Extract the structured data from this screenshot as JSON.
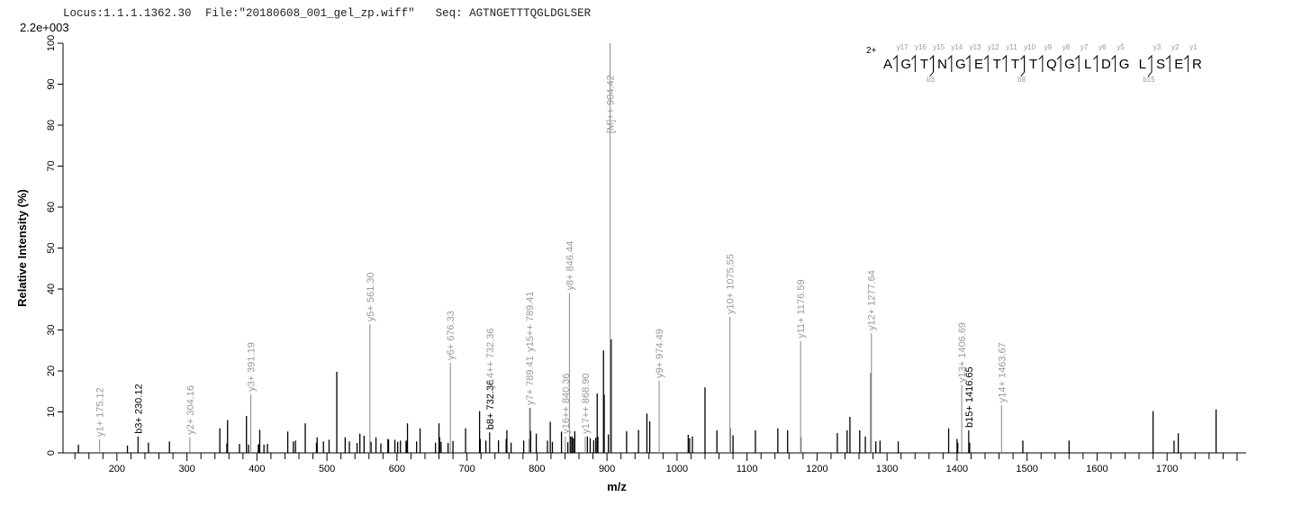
{
  "header": {
    "locus": "Locus:1.1.1.1362.30",
    "file": "File:\"20180608_001_gel_zp.wiff\"",
    "seq": "Seq: AGTNGETTTQGLDGLSER",
    "scale": "2.2e+003"
  },
  "colors": {
    "peak": "#000000",
    "y_ion": "#999999",
    "b_ion": "#000000",
    "axis": "#000000"
  },
  "chart_data": {
    "type": "bar",
    "title": "",
    "xlabel": "m/z",
    "ylabel": "Relative   Intensity (%)",
    "xlim": [
      123,
      1813
    ],
    "ylim": [
      0,
      100
    ],
    "xticks": [
      200,
      300,
      400,
      500,
      600,
      700,
      800,
      900,
      1000,
      1100,
      1200,
      1300,
      1400,
      1500,
      1600,
      1700
    ],
    "yticks": [
      0,
      10,
      20,
      30,
      40,
      50,
      60,
      70,
      80,
      90,
      100
    ],
    "grid": false,
    "annotated_peaks": [
      {
        "mz": 175.12,
        "intensity": 3.3,
        "label": "y1+ 175.12",
        "ion": "y"
      },
      {
        "mz": 230.12,
        "intensity": 4,
        "label": "b3+ 230.12",
        "ion": "b"
      },
      {
        "mz": 304.16,
        "intensity": 3.8,
        "label": "y2+ 304.16",
        "ion": "y"
      },
      {
        "mz": 391.19,
        "intensity": 14.3,
        "label": "y3+ 391.19",
        "ion": "y"
      },
      {
        "mz": 561.3,
        "intensity": 31.4,
        "label": "y5+ 561.30",
        "ion": "y"
      },
      {
        "mz": 676.33,
        "intensity": 22,
        "label": "y6+ 676.33",
        "ion": "y"
      },
      {
        "mz": 732.36,
        "intensity": 5,
        "label": "b8+ 732.36",
        "ion": "b"
      },
      {
        "mz": 732.36,
        "intensity": 15,
        "label": "y14++ 732.36",
        "ion": "y",
        "label_only": true
      },
      {
        "mz": 789.41,
        "intensity": 11,
        "label": "y7+ 789.41",
        "ion": "y"
      },
      {
        "mz": 789.41,
        "intensity": 24,
        "label": "y15++ 789.41",
        "ion": "y",
        "label_only": true
      },
      {
        "mz": 840.36,
        "intensity": 4,
        "label": "y16++ 840.36",
        "ion": "y"
      },
      {
        "mz": 846.44,
        "intensity": 39,
        "label": "y8+ 846.44",
        "ion": "y"
      },
      {
        "mz": 868.9,
        "intensity": 4,
        "label": "y17++ 868.90",
        "ion": "y"
      },
      {
        "mz": 904.42,
        "intensity": 100,
        "label": "[M]++ 904.42",
        "ion": "y",
        "label_offset": true
      },
      {
        "mz": 974.49,
        "intensity": 17.6,
        "label": "y9+ 974.49",
        "ion": "y"
      },
      {
        "mz": 1075.55,
        "intensity": 33.2,
        "label": "y10+ 1075.55",
        "ion": "y"
      },
      {
        "mz": 1176.59,
        "intensity": 27.3,
        "label": "y11+ 1176.59",
        "ion": "y"
      },
      {
        "mz": 1277.64,
        "intensity": 29.2,
        "label": "y12+ 1277.64",
        "ion": "y"
      },
      {
        "mz": 1406.69,
        "intensity": 16.5,
        "label": "y13+ 1406.69",
        "ion": "y"
      },
      {
        "mz": 1416.65,
        "intensity": 5.5,
        "label": "b15+ 1416.65",
        "ion": "b"
      },
      {
        "mz": 1463.67,
        "intensity": 11.6,
        "label": "y14+ 1463.67",
        "ion": "y"
      }
    ],
    "peaks": [
      [
        145,
        2
      ],
      [
        215,
        1.8
      ],
      [
        245,
        2.5
      ],
      [
        275,
        2.8
      ],
      [
        347,
        6
      ],
      [
        357,
        2.3
      ],
      [
        358,
        8
      ],
      [
        375,
        2.2
      ],
      [
        385,
        9
      ],
      [
        388,
        2
      ],
      [
        402,
        2
      ],
      [
        403,
        2.2
      ],
      [
        404,
        5.6
      ],
      [
        410,
        2
      ],
      [
        415,
        2.2
      ],
      [
        444,
        5.2
      ],
      [
        452,
        2.8
      ],
      [
        455,
        3
      ],
      [
        469,
        7.2
      ],
      [
        485,
        2.5
      ],
      [
        486,
        3.8
      ],
      [
        495,
        2.8
      ],
      [
        503,
        3.2
      ],
      [
        514,
        19.8
      ],
      [
        526,
        3.8
      ],
      [
        532,
        2.8
      ],
      [
        543,
        2.4
      ],
      [
        547,
        4.7
      ],
      [
        553,
        4.2
      ],
      [
        563,
        2.7
      ],
      [
        570,
        3.8
      ],
      [
        577,
        2.3
      ],
      [
        587,
        3.4
      ],
      [
        588,
        3.2
      ],
      [
        597,
        3.2
      ],
      [
        601,
        2.7
      ],
      [
        605,
        3
      ],
      [
        613,
        3
      ],
      [
        614,
        2.9
      ],
      [
        615,
        7.2
      ],
      [
        628,
        2.8
      ],
      [
        633,
        6
      ],
      [
        655,
        2.5
      ],
      [
        660,
        7.2
      ],
      [
        661,
        3.8
      ],
      [
        663,
        2.7
      ],
      [
        673,
        2.4
      ],
      [
        680,
        2.9
      ],
      [
        698,
        6
      ],
      [
        718,
        10.2
      ],
      [
        719,
        3.4
      ],
      [
        727,
        3
      ],
      [
        745,
        3.1
      ],
      [
        756,
        3.4
      ],
      [
        757,
        5.5
      ],
      [
        763,
        2.5
      ],
      [
        781,
        3
      ],
      [
        789,
        3.4
      ],
      [
        790,
        11
      ],
      [
        791,
        5.4
      ],
      [
        799,
        4.7
      ],
      [
        815,
        3
      ],
      [
        819,
        7.6
      ],
      [
        822,
        2.7
      ],
      [
        835,
        5.2
      ],
      [
        844,
        2.6
      ],
      [
        848,
        4
      ],
      [
        850,
        4
      ],
      [
        852,
        3.6
      ],
      [
        854,
        5.3
      ],
      [
        872,
        4
      ],
      [
        876,
        3.6
      ],
      [
        881,
        3.1
      ],
      [
        884,
        3.7
      ],
      [
        886,
        14.5
      ],
      [
        887,
        4
      ],
      [
        895,
        25
      ],
      [
        896,
        14.2
      ],
      [
        902,
        4.5
      ],
      [
        906,
        27.7
      ],
      [
        928,
        5.3
      ],
      [
        945,
        5.6
      ],
      [
        957,
        9.6
      ],
      [
        961,
        7.7
      ],
      [
        1016,
        4.4
      ],
      [
        1018,
        3.6
      ],
      [
        1022,
        4
      ],
      [
        1040,
        16
      ],
      [
        1057,
        5.5
      ],
      [
        1076,
        6
      ],
      [
        1080,
        4.3
      ],
      [
        1112,
        5.5
      ],
      [
        1144,
        6
      ],
      [
        1158,
        5.5
      ],
      [
        1177,
        3.8
      ],
      [
        1229,
        4.8
      ],
      [
        1243,
        5.5
      ],
      [
        1247,
        8.8
      ],
      [
        1261,
        5.5
      ],
      [
        1269,
        4
      ],
      [
        1277,
        19.5
      ],
      [
        1284,
        2.8
      ],
      [
        1290,
        3
      ],
      [
        1316,
        2.8
      ],
      [
        1388,
        6
      ],
      [
        1400,
        3.4
      ],
      [
        1401,
        2.5
      ],
      [
        1418,
        2.5
      ],
      [
        1494,
        3
      ],
      [
        1560,
        3
      ],
      [
        1680,
        10.2
      ],
      [
        1710,
        3
      ],
      [
        1716,
        4.8
      ],
      [
        1770,
        10.6
      ]
    ],
    "sequence_annotation": {
      "charge": "2+",
      "residues": [
        "A",
        "G",
        "T",
        "N",
        "G",
        "E",
        "T",
        "T",
        "T",
        "Q",
        "G",
        "L",
        "D",
        "G",
        "L",
        "S",
        "E",
        "R"
      ],
      "y_ions": [
        {
          "before": 1,
          "label": "y17"
        },
        {
          "before": 2,
          "label": "y16"
        },
        {
          "before": 3,
          "label": "y15"
        },
        {
          "before": 4,
          "label": "y14"
        },
        {
          "before": 5,
          "label": "y13"
        },
        {
          "before": 6,
          "label": "y12"
        },
        {
          "before": 7,
          "label": "y11"
        },
        {
          "before": 8,
          "label": "y10"
        },
        {
          "before": 9,
          "label": "y9"
        },
        {
          "before": 10,
          "label": "y8"
        },
        {
          "before": 11,
          "label": "y7"
        },
        {
          "before": 12,
          "label": "y6"
        },
        {
          "before": 13,
          "label": "y5"
        },
        {
          "before": 15,
          "label": "y3"
        },
        {
          "before": 16,
          "label": "y2"
        },
        {
          "before": 17,
          "label": "y1"
        }
      ],
      "b_ions": [
        {
          "before": 3,
          "label": "b3"
        },
        {
          "before": 8,
          "label": "b8"
        },
        {
          "before": 15,
          "label": "b15"
        }
      ]
    }
  }
}
